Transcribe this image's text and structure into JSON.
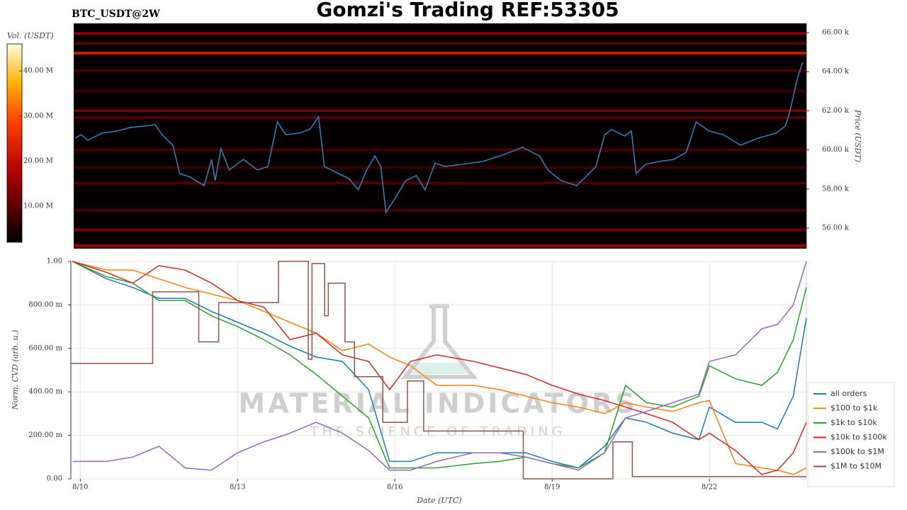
{
  "chart_data": [
    {
      "type": "heatmap",
      "title": "Gomzi's Trading REF:53305",
      "subtitle": "BTC_USDT@2W",
      "ylabel": "Price (USDT)",
      "colorbar_label": "Vol. (USDT)",
      "xlim": [
        9.82,
        23.85
      ],
      "ylim": [
        54950,
        66470
      ],
      "yticks": [
        {
          "value": 56000,
          "label": "56.00 k"
        },
        {
          "value": 58000,
          "label": "58.00 k"
        },
        {
          "value": 60000,
          "label": "60.00 k"
        },
        {
          "value": 62000,
          "label": "62.00 k"
        },
        {
          "value": 64000,
          "label": "64.00 k"
        },
        {
          "value": 66000,
          "label": "66.00 k"
        }
      ],
      "clim": [
        2,
        46
      ],
      "cticks": [
        {
          "value": 10,
          "label": "10.00 M"
        },
        {
          "value": 20,
          "label": "20.00 M"
        },
        {
          "value": 30,
          "label": "30.00 M"
        },
        {
          "value": 40,
          "label": "40.00 M"
        }
      ],
      "levels": [
        65950,
        65450,
        64950,
        64050,
        63000,
        62000,
        61650,
        60000,
        59100,
        58300,
        56900,
        55900,
        55100
      ],
      "volumes": [
        14,
        10,
        22,
        8,
        7,
        12,
        9,
        8,
        7,
        9,
        8,
        12,
        16
      ],
      "price": {
        "color": "#3a78b0",
        "x": [
          9.85,
          9.96,
          10.09,
          10.36,
          10.64,
          10.9,
          11.18,
          11.38,
          11.51,
          11.72,
          11.85,
          12.05,
          12.32,
          12.46,
          12.53,
          12.64,
          12.8,
          13.07,
          13.34,
          13.54,
          13.72,
          13.88,
          14.15,
          14.35,
          14.51,
          14.62,
          14.89,
          15.09,
          15.27,
          15.43,
          15.59,
          15.7,
          15.8,
          15.97,
          16.18,
          16.38,
          16.55,
          16.74,
          16.92,
          17.26,
          17.66,
          18.07,
          18.41,
          18.74,
          18.9,
          19.15,
          19.45,
          19.62,
          19.82,
          19.99,
          20.12,
          20.37,
          20.5,
          20.59,
          20.77,
          21.04,
          21.31,
          21.55,
          21.74,
          21.99,
          22.26,
          22.59,
          22.93,
          23.27,
          23.45,
          23.54,
          23.68,
          23.78
        ],
        "values": [
          60600,
          60780,
          60490,
          60860,
          60960,
          61140,
          61220,
          61290,
          60780,
          60240,
          58790,
          58610,
          58170,
          59510,
          58430,
          60060,
          58970,
          59510,
          58970,
          59150,
          61430,
          60780,
          60860,
          61070,
          61690,
          59150,
          58790,
          58530,
          57960,
          58970,
          59690,
          59150,
          56800,
          57520,
          58430,
          58680,
          57960,
          59330,
          59150,
          59260,
          59410,
          59770,
          60130,
          59690,
          58970,
          58430,
          58170,
          58610,
          59150,
          60780,
          61040,
          60710,
          60960,
          58790,
          59260,
          59410,
          59510,
          59880,
          61430,
          60960,
          60780,
          60240,
          60600,
          60860,
          61220,
          62050,
          63680,
          64480
        ]
      }
    },
    {
      "type": "line",
      "xlabel": "Date (UTC)",
      "ylabel": "Norm. CVD (arb. u.)",
      "annotations": [
        "MATERIAL INDICATORS",
        "THE SCIENCE OF TRADING"
      ],
      "xlim": [
        9.82,
        23.85
      ],
      "xticks": [
        {
          "value": 10,
          "label": "8/10"
        },
        {
          "value": 13,
          "label": "8/13"
        },
        {
          "value": 16,
          "label": "8/16"
        },
        {
          "value": 19,
          "label": "8/19"
        },
        {
          "value": 22,
          "label": "8/22"
        }
      ],
      "ylim": [
        0,
        1
      ],
      "yticks": [
        {
          "value": 0,
          "label": "0.00"
        },
        {
          "value": 0.2,
          "label": "200.00 m"
        },
        {
          "value": 0.4,
          "label": "400.00 m"
        },
        {
          "value": 0.6,
          "label": "600.00 m"
        },
        {
          "value": 0.8,
          "label": "800.00 m"
        },
        {
          "value": 1,
          "label": "1.00"
        }
      ],
      "grid": true,
      "legend": "lower right",
      "x": [
        9.85,
        10.5,
        11,
        11.5,
        12,
        12.5,
        13,
        13.5,
        14,
        14.5,
        15,
        15.5,
        15.9,
        16.3,
        16.8,
        17.5,
        18,
        18.5,
        19,
        19.5,
        20,
        20.4,
        20.8,
        21.3,
        21.8,
        22,
        22.5,
        23,
        23.3,
        23.6,
        23.85
      ],
      "series": [
        {
          "name": "all orders",
          "color": "#1f77b4",
          "values": [
            1.0,
            0.92,
            0.88,
            0.83,
            0.83,
            0.77,
            0.72,
            0.67,
            0.61,
            0.56,
            0.54,
            0.41,
            0.08,
            0.08,
            0.12,
            0.12,
            0.12,
            0.12,
            0.08,
            0.05,
            0.15,
            0.28,
            0.26,
            0.21,
            0.18,
            0.33,
            0.26,
            0.26,
            0.23,
            0.38,
            0.74
          ]
        },
        {
          "name": "$100 to $1k",
          "color": "#ff7f0e",
          "values": [
            1.0,
            0.96,
            0.96,
            0.92,
            0.88,
            0.85,
            0.82,
            0.77,
            0.72,
            0.67,
            0.59,
            0.62,
            0.56,
            0.52,
            0.43,
            0.43,
            0.41,
            0.38,
            0.35,
            0.33,
            0.3,
            0.35,
            0.33,
            0.31,
            0.35,
            0.36,
            0.07,
            0.05,
            0.04,
            0.02,
            0.05
          ]
        },
        {
          "name": "$1k to $10k",
          "color": "#2ca02c",
          "values": [
            1.0,
            0.93,
            0.9,
            0.82,
            0.82,
            0.75,
            0.7,
            0.64,
            0.57,
            0.48,
            0.38,
            0.28,
            0.05,
            0.05,
            0.05,
            0.07,
            0.08,
            0.1,
            0.07,
            0.05,
            0.12,
            0.43,
            0.35,
            0.33,
            0.38,
            0.52,
            0.46,
            0.43,
            0.49,
            0.64,
            0.88
          ]
        },
        {
          "name": "$10k to $100k",
          "color": "#d62728",
          "values": [
            1.0,
            0.95,
            0.9,
            0.98,
            0.96,
            0.9,
            0.82,
            0.79,
            0.64,
            0.67,
            0.57,
            0.54,
            0.41,
            0.54,
            0.57,
            0.54,
            0.51,
            0.48,
            0.43,
            0.39,
            0.36,
            0.33,
            0.3,
            0.26,
            0.18,
            0.21,
            0.13,
            0.02,
            0.04,
            0.12,
            0.26
          ]
        },
        {
          "name": "$100k to $1M",
          "color": "#9467bd",
          "values": [
            0.08,
            0.08,
            0.1,
            0.15,
            0.05,
            0.04,
            0.12,
            0.17,
            0.21,
            0.26,
            0.21,
            0.13,
            0.04,
            0.04,
            0.08,
            0.12,
            0.12,
            0.1,
            0.07,
            0.04,
            0.12,
            0.28,
            0.31,
            0.35,
            0.39,
            0.54,
            0.57,
            0.69,
            0.71,
            0.8,
            1.0
          ]
        },
        {
          "name": "$1M to $10M",
          "color": "#8c564b",
          "step": true,
          "x": [
            9.82,
            11.38,
            12.26,
            12.64,
            13.78,
            14.35,
            14.42,
            14.66,
            14.73,
            15.05,
            15.23,
            15.77,
            16.24,
            16.55,
            18.45,
            20.16,
            20.53,
            23.85
          ],
          "values": [
            0.53,
            0.86,
            0.63,
            0.81,
            1.0,
            0.55,
            0.99,
            0.75,
            0.9,
            0.63,
            0.47,
            0.26,
            0.45,
            0.22,
            0.0,
            0.17,
            0.01,
            0.01
          ]
        }
      ]
    }
  ]
}
